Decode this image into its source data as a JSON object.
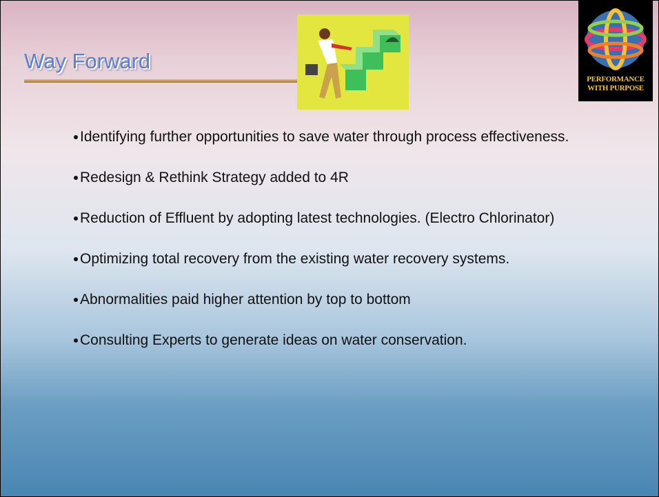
{
  "header": {
    "title": "Way Forward",
    "logo_text": [
      "PERFORMANCE",
      "WITH PURPOSE"
    ]
  },
  "bullets": [
    "Identifying further opportunities to save water through process effectiveness.",
    "Redesign & Rethink Strategy added to 4R",
    "Reduction of Effluent by adopting latest technologies. (Electro Chlorinator)",
    "Optimizing total recovery from the existing water recovery systems.",
    "Abnormalities paid higher attention by top to bottom",
    "Consulting Experts to generate ideas on water conservation."
  ]
}
